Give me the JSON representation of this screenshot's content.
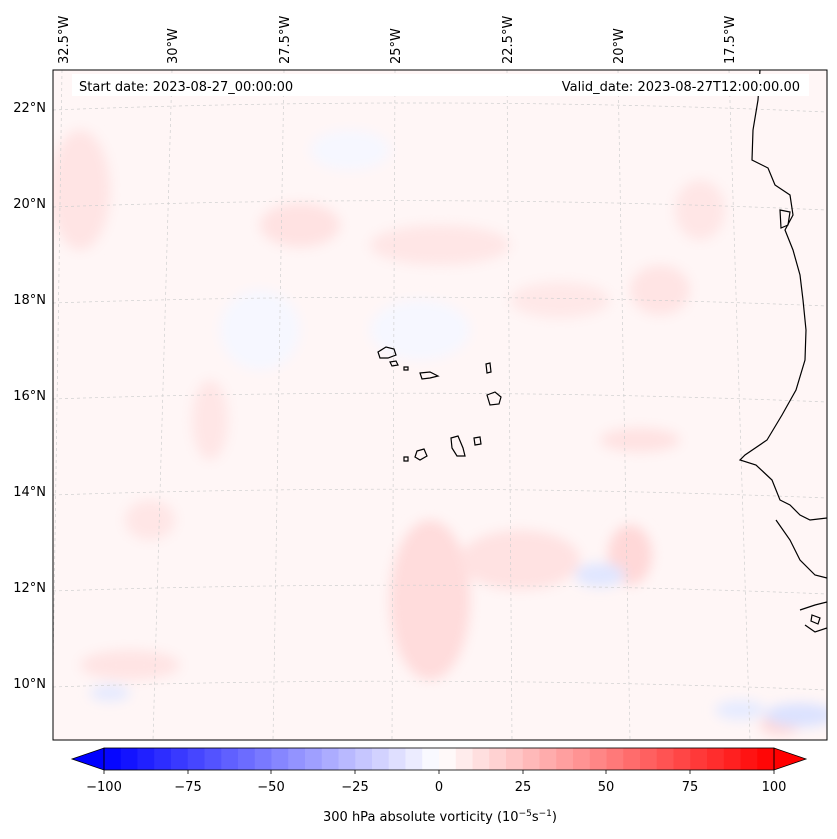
{
  "header": {
    "start_date": "Start date: 2023-08-27_00:00:00",
    "valid_date": "Valid_date: 2023-08-27T12:00:00.00"
  },
  "map": {
    "lon_labels": [
      "32.5°W",
      "30°W",
      "27.5°W",
      "25°W",
      "22.5°W",
      "20°W",
      "17.5°W"
    ],
    "lat_labels": [
      "22°N",
      "20°N",
      "18°N",
      "16°N",
      "14°N",
      "12°N",
      "10°N"
    ],
    "colors": {
      "coast": "#000000",
      "grid": "#c8c8c8",
      "frame": "#000000",
      "weak_positive": "#fff2f2",
      "positive": "#ffdada",
      "negative": "#f0f3ff",
      "strong_negative": "#dbe2ff"
    }
  },
  "colorbar": {
    "ticks": [
      "−100",
      "−75",
      "−50",
      "−25",
      "0",
      "25",
      "50",
      "75",
      "100"
    ],
    "label": "300 hPa absolute vorticity (10",
    "label_exp1": "−5",
    "label_mid": "s",
    "label_exp2": "−1",
    "label_end": ")",
    "low_color": "#0000ff",
    "mid_color": "#ffffff",
    "high_color": "#ff0000"
  }
}
